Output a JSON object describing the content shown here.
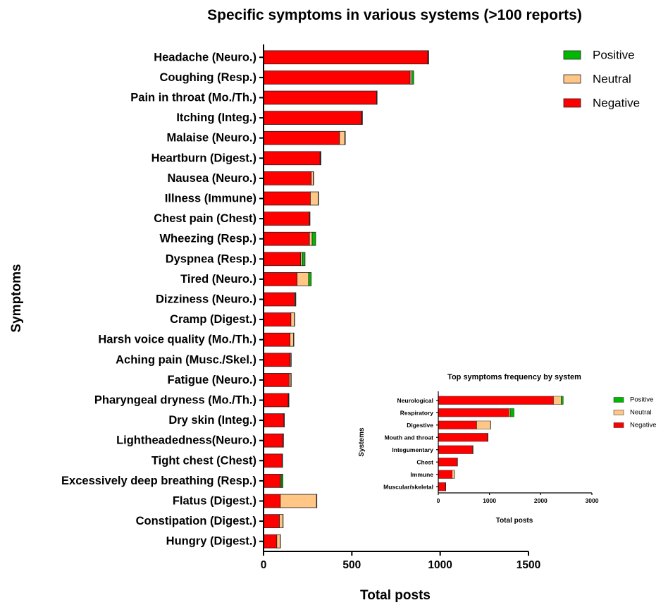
{
  "chart_data": [
    {
      "type": "bar",
      "orientation": "horizontal",
      "stacked": true,
      "title": "Specific symptoms in various systems (>100 reports)",
      "xlabel": "Total posts",
      "ylabel": "Symptoms",
      "xlim": [
        0,
        1500
      ],
      "xticks": [
        0,
        500,
        1000,
        1500
      ],
      "legend_position": "top-right",
      "grid": false,
      "categories": [
        "Headache (Neuro.)",
        "Coughing (Resp.)",
        "Pain in throat (Mo./Th.)",
        "Itching (Integ.)",
        "Malaise (Neuro.)",
        "Heartburn (Digest.)",
        "Nausea (Neuro.)",
        "Illness (Immune)",
        "Chest pain (Chest)",
        "Wheezing (Resp.)",
        "Dyspnea (Resp.)",
        "Tired (Neuro.)",
        "Dizziness (Neuro.)",
        "Cramp (Digest.)",
        "Harsh voice quality (Mo./Th.)",
        "Aching pain (Musc./Skel.)",
        "Fatigue (Neuro.)",
        "Pharyngeal dryness (Mo./Th.)",
        "Dry skin (Integ.)",
        "Lightheadedness(Neuro.)",
        "Tight chest (Chest)",
        "Excessively deep breathing (Resp.)",
        "Flatus (Digest.)",
        "Constipation (Digest.)",
        "Hungry (Digest.)"
      ],
      "series": [
        {
          "name": "Negative",
          "color": "#ff0000",
          "values": [
            930,
            830,
            640,
            555,
            430,
            320,
            270,
            265,
            260,
            260,
            210,
            190,
            175,
            155,
            150,
            150,
            145,
            140,
            115,
            110,
            105,
            95,
            95,
            90,
            75
          ]
        },
        {
          "name": "Neutral",
          "color": "#ffc685",
          "values": [
            3,
            10,
            2,
            3,
            30,
            3,
            12,
            45,
            2,
            15,
            10,
            65,
            5,
            20,
            20,
            5,
            10,
            3,
            2,
            2,
            2,
            5,
            205,
            20,
            20
          ]
        },
        {
          "name": "Positive",
          "color": "#00b800",
          "values": [
            2,
            10,
            1,
            2,
            3,
            2,
            2,
            2,
            1,
            20,
            15,
            15,
            3,
            2,
            2,
            2,
            2,
            1,
            1,
            1,
            1,
            10,
            2,
            1,
            1
          ]
        }
      ]
    },
    {
      "type": "bar",
      "orientation": "horizontal",
      "stacked": true,
      "title": "Top symptoms frequency by system",
      "xlabel": "Total posts",
      "ylabel": "Systems",
      "xlim": [
        0,
        3000
      ],
      "xticks": [
        0,
        1000,
        2000,
        3000
      ],
      "legend_position": "right",
      "grid": false,
      "categories": [
        "Neurological",
        "Respiratory",
        "Digestive",
        "Mouth and throat",
        "Integumentary",
        "Chest",
        "Immune",
        "Muscular/skeletal"
      ],
      "series": [
        {
          "name": "Negative",
          "color": "#ff0000",
          "values": [
            2250,
            1380,
            750,
            960,
            670,
            370,
            270,
            140
          ]
        },
        {
          "name": "Neutral",
          "color": "#ffc685",
          "values": [
            150,
            25,
            270,
            10,
            8,
            5,
            45,
            5
          ]
        },
        {
          "name": "Positive",
          "color": "#00b800",
          "values": [
            40,
            75,
            5,
            3,
            2,
            2,
            2,
            2
          ]
        }
      ]
    }
  ]
}
